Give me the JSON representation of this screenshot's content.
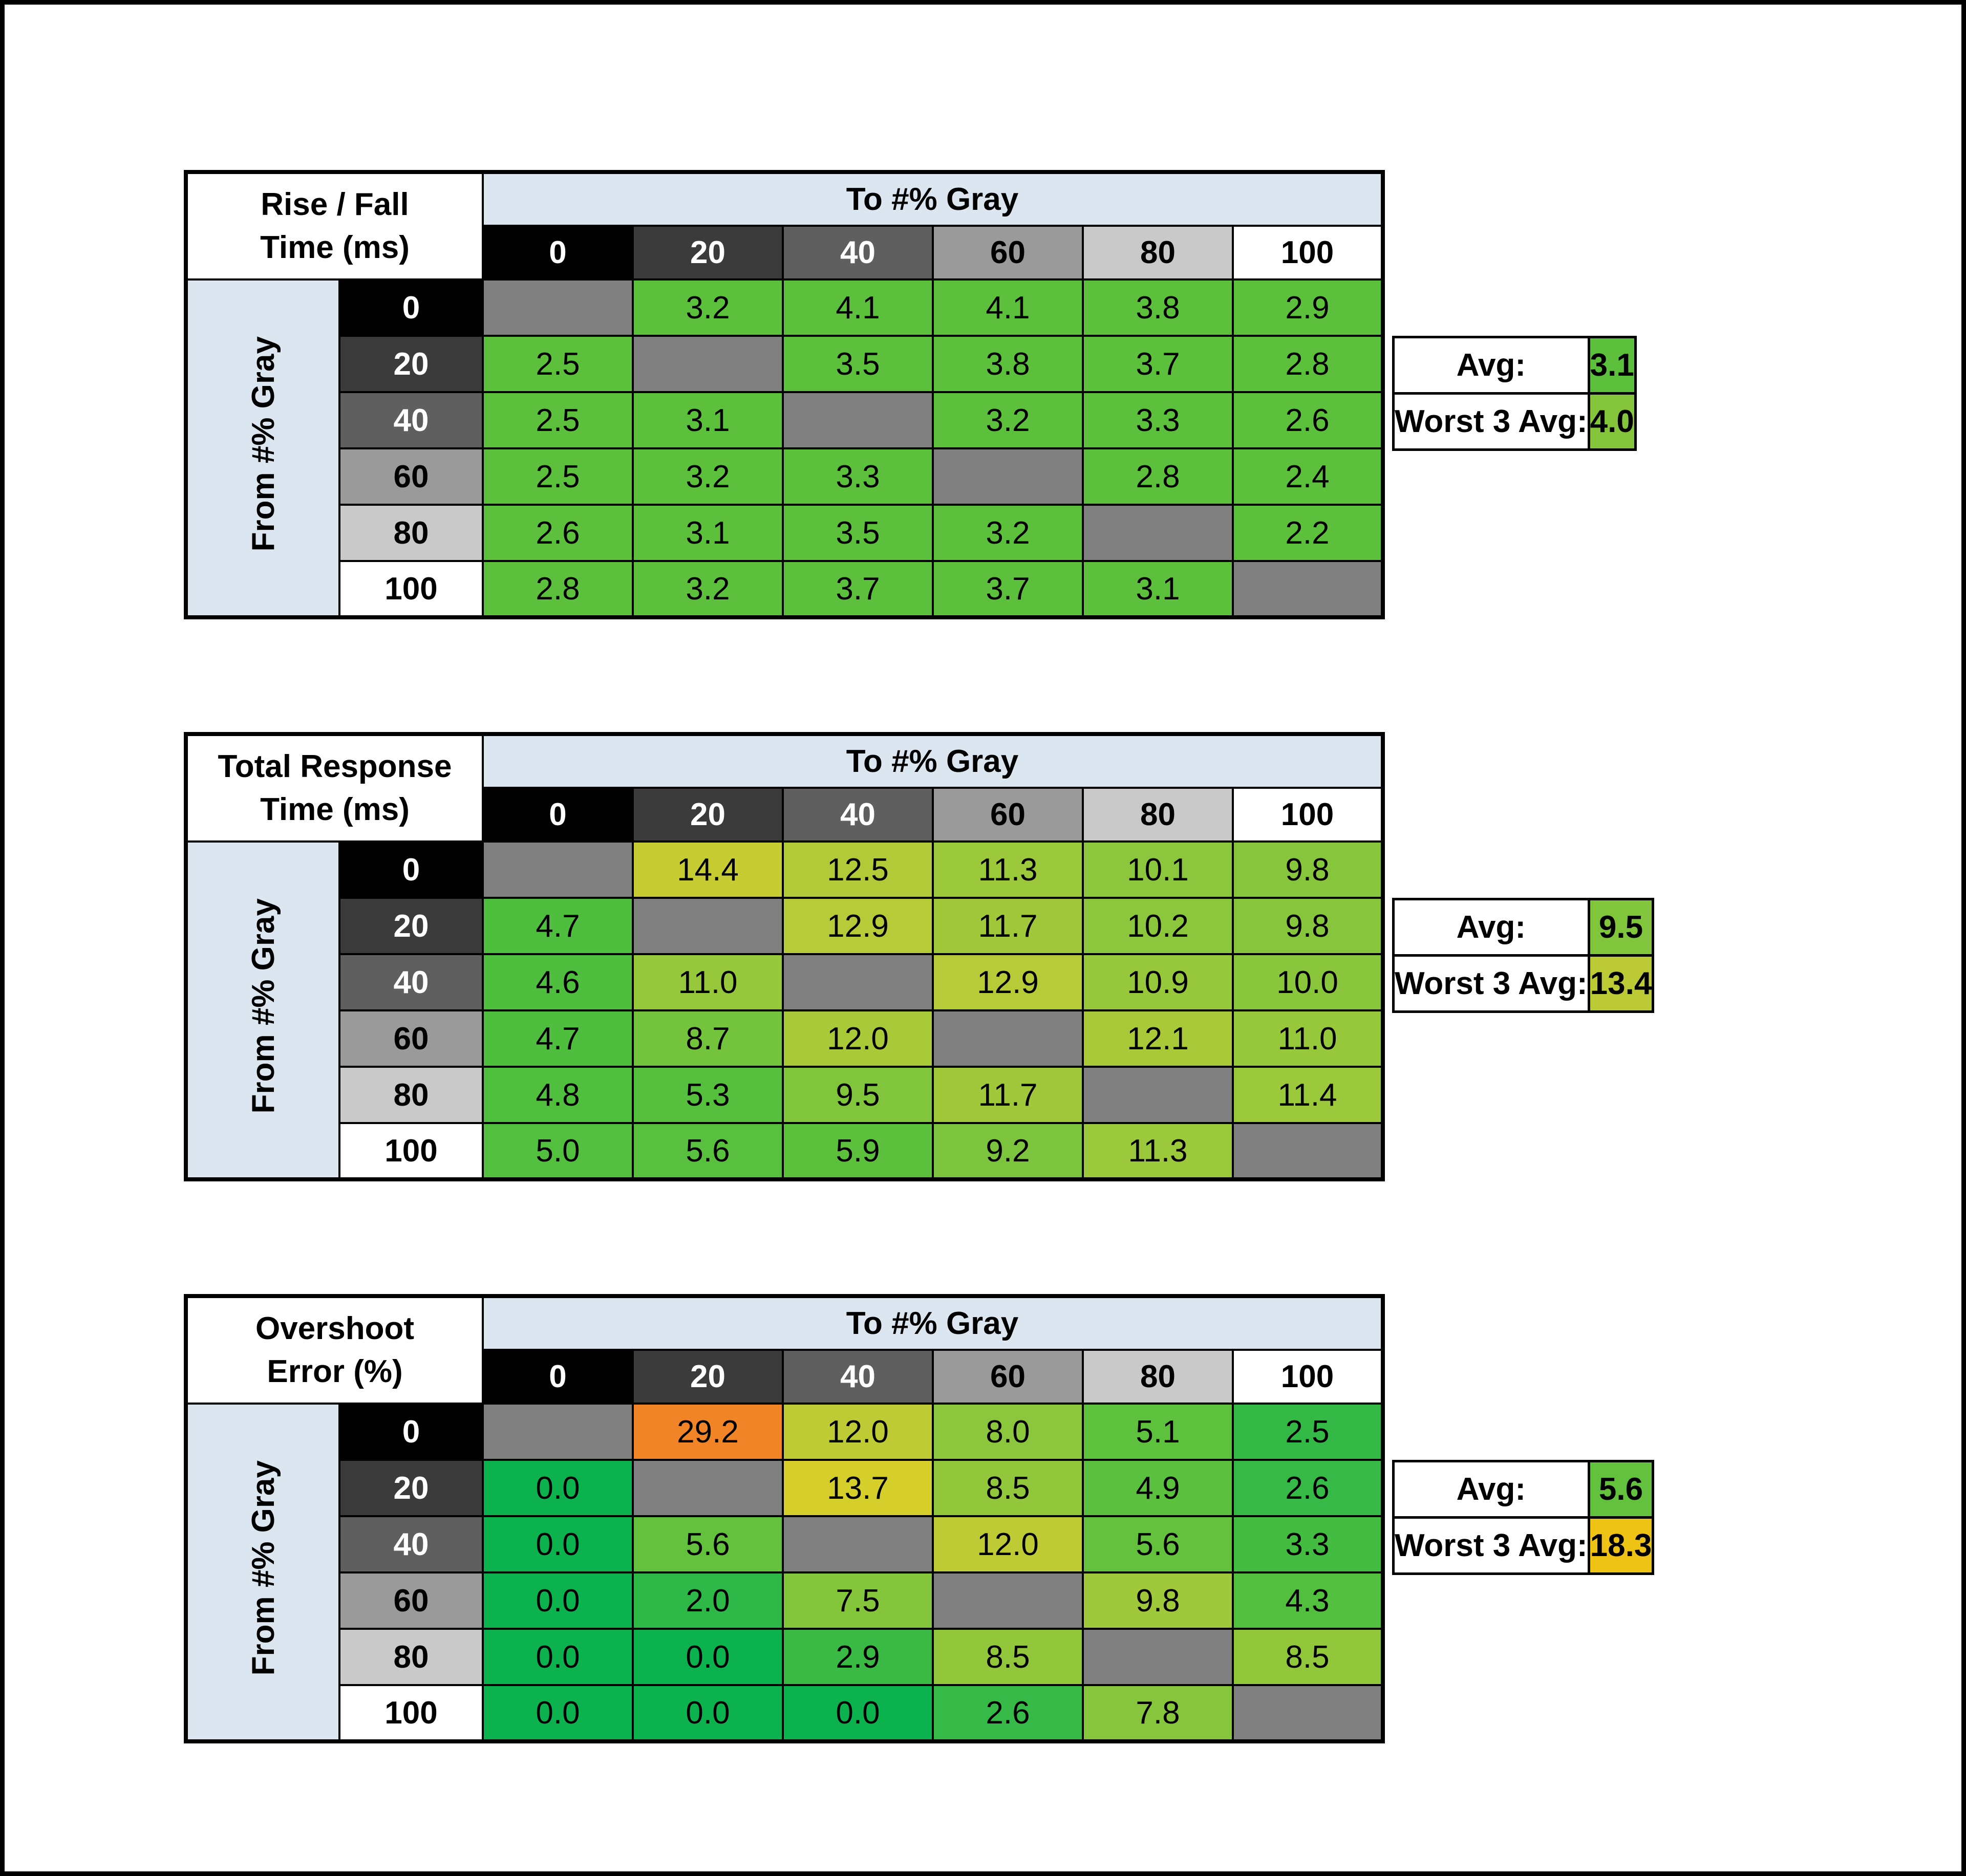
{
  "page": {
    "background": "#ffffff",
    "frame_color": "#000000",
    "header_blue": "#dce6f0",
    "diagonal_color": "#808080"
  },
  "axis": {
    "col_label": "To #% Gray",
    "row_label": "From #% Gray"
  },
  "gray_headers": [
    {
      "label": "0",
      "bg": "#000000",
      "fg": "#ffffff"
    },
    {
      "label": "20",
      "bg": "#3b3b3b",
      "fg": "#ffffff"
    },
    {
      "label": "40",
      "bg": "#5f5f5f",
      "fg": "#ffffff"
    },
    {
      "label": "60",
      "bg": "#9a9a9a",
      "fg": "#000000"
    },
    {
      "label": "80",
      "bg": "#c9c9c9",
      "fg": "#000000"
    },
    {
      "label": "100",
      "bg": "#ffffff",
      "fg": "#000000"
    }
  ],
  "tables": [
    {
      "id": "rise-fall",
      "title_lines": [
        "Rise / Fall",
        "Time (ms)"
      ],
      "summary": {
        "avg_label": "Avg:",
        "avg_value": 3.1,
        "avg_color": "#5cc03d",
        "worst_label": "Worst 3 Avg:",
        "worst_value": 4.0,
        "worst_color": "#84c53c"
      },
      "cell_colors": [
        [
          null,
          "#5cc03d",
          "#5cc03d",
          "#5cc03d",
          "#5cc03d",
          "#5cc03d"
        ],
        [
          "#5cc03d",
          null,
          "#5cc03d",
          "#5cc03d",
          "#5cc03d",
          "#5cc03d"
        ],
        [
          "#5cc03d",
          "#5cc03d",
          null,
          "#5cc03d",
          "#5cc03d",
          "#5cc03d"
        ],
        [
          "#5cc03d",
          "#5cc03d",
          "#5cc03d",
          null,
          "#5cc03d",
          "#5cc03d"
        ],
        [
          "#5cc03d",
          "#5cc03d",
          "#5cc03d",
          "#5cc03d",
          null,
          "#5cc03d"
        ],
        [
          "#5cc03d",
          "#5cc03d",
          "#5cc03d",
          "#5cc03d",
          "#5cc03d",
          null
        ]
      ]
    },
    {
      "id": "total-response",
      "title_lines": [
        "Total Response",
        "Time (ms)"
      ],
      "summary": {
        "avg_label": "Avg:",
        "avg_value": 9.5,
        "avg_color": "#80c53c",
        "worst_label": "Worst 3 Avg:",
        "worst_value": 13.4,
        "worst_color": "#bcca36"
      },
      "cell_colors": [
        [
          null,
          "#c8cc33",
          "#b2c938",
          "#9cc83b",
          "#8cc63c",
          "#86c53c"
        ],
        [
          "#4fbe3f",
          null,
          "#b7ca37",
          "#a1c83a",
          "#8cc63c",
          "#86c53c"
        ],
        [
          "#4fbe3f",
          "#97c73b",
          null,
          "#b7ca37",
          "#97c73b",
          "#8ac63c"
        ],
        [
          "#4fbe3f",
          "#74c33d",
          "#aac939",
          null,
          "#aac939",
          "#97c73b"
        ],
        [
          "#50bf3e",
          "#56bf3e",
          "#80c53c",
          "#a1c83a",
          null,
          "#9cc83b"
        ],
        [
          "#52bf3e",
          "#58c03e",
          "#5cc03d",
          "#7cc43d",
          "#9cc83b",
          null
        ]
      ]
    },
    {
      "id": "overshoot",
      "title_lines": [
        "Overshoot",
        "Error (%)"
      ],
      "summary": {
        "avg_label": "Avg:",
        "avg_value": 5.6,
        "avg_color": "#63c13d",
        "worst_label": "Worst 3 Avg:",
        "worst_value": 18.3,
        "worst_color": "#efc316"
      },
      "cell_colors": [
        [
          null,
          "#f08426",
          "#bfcb35",
          "#8cc63c",
          "#5dc13d",
          "#35b946"
        ],
        [
          "#0cb24e",
          null,
          "#d6ce2b",
          "#92c73b",
          "#5ac03d",
          "#36b946"
        ],
        [
          "#0cb24e",
          "#63c13d",
          null,
          "#bfcb35",
          "#63c13d",
          "#44bc42"
        ],
        [
          "#0cb24e",
          "#2eb847",
          "#84c53c",
          null,
          "#9fc83a",
          "#52bf3e"
        ],
        [
          "#0cb24e",
          "#0cb24e",
          "#3aba45",
          "#92c73b",
          null,
          "#92c73b"
        ],
        [
          "#0cb24e",
          "#0cb24e",
          "#0cb24e",
          "#36b946",
          "#87c53c",
          null
        ]
      ]
    }
  ],
  "chart_data": [
    {
      "type": "heatmap",
      "title": "Rise / Fall Time (ms)",
      "xlabel": "To #% Gray",
      "ylabel": "From #% Gray",
      "x": [
        0,
        20,
        40,
        60,
        80,
        100
      ],
      "y": [
        0,
        20,
        40,
        60,
        80,
        100
      ],
      "values": [
        [
          null,
          3.2,
          4.1,
          4.1,
          3.8,
          2.9
        ],
        [
          2.5,
          null,
          3.5,
          3.8,
          3.7,
          2.8
        ],
        [
          2.5,
          3.1,
          null,
          3.2,
          3.3,
          2.6
        ],
        [
          2.5,
          3.2,
          3.3,
          null,
          2.8,
          2.4
        ],
        [
          2.6,
          3.1,
          3.5,
          3.2,
          null,
          2.2
        ],
        [
          2.8,
          3.2,
          3.7,
          3.7,
          3.1,
          null
        ]
      ],
      "avg": 3.1,
      "worst_3_avg": 4.0
    },
    {
      "type": "heatmap",
      "title": "Total Response Time (ms)",
      "xlabel": "To #% Gray",
      "ylabel": "From #% Gray",
      "x": [
        0,
        20,
        40,
        60,
        80,
        100
      ],
      "y": [
        0,
        20,
        40,
        60,
        80,
        100
      ],
      "values": [
        [
          null,
          14.4,
          12.5,
          11.3,
          10.1,
          9.8
        ],
        [
          4.7,
          null,
          12.9,
          11.7,
          10.2,
          9.8
        ],
        [
          4.6,
          11.0,
          null,
          12.9,
          10.9,
          10.0
        ],
        [
          4.7,
          8.7,
          12.0,
          null,
          12.1,
          11.0
        ],
        [
          4.8,
          5.3,
          9.5,
          11.7,
          null,
          11.4
        ],
        [
          5.0,
          5.6,
          5.9,
          9.2,
          11.3,
          null
        ]
      ],
      "avg": 9.5,
      "worst_3_avg": 13.4
    },
    {
      "type": "heatmap",
      "title": "Overshoot Error (%)",
      "xlabel": "To #% Gray",
      "ylabel": "From #% Gray",
      "x": [
        0,
        20,
        40,
        60,
        80,
        100
      ],
      "y": [
        0,
        20,
        40,
        60,
        80,
        100
      ],
      "values": [
        [
          null,
          29.2,
          12.0,
          8.0,
          5.1,
          2.5
        ],
        [
          0.0,
          null,
          13.7,
          8.5,
          4.9,
          2.6
        ],
        [
          0.0,
          5.6,
          null,
          12.0,
          5.6,
          3.3
        ],
        [
          0.0,
          2.0,
          7.5,
          null,
          9.8,
          4.3
        ],
        [
          0.0,
          0.0,
          2.9,
          8.5,
          null,
          8.5
        ],
        [
          0.0,
          0.0,
          0.0,
          2.6,
          7.8,
          null
        ]
      ],
      "avg": 5.6,
      "worst_3_avg": 18.3
    }
  ]
}
